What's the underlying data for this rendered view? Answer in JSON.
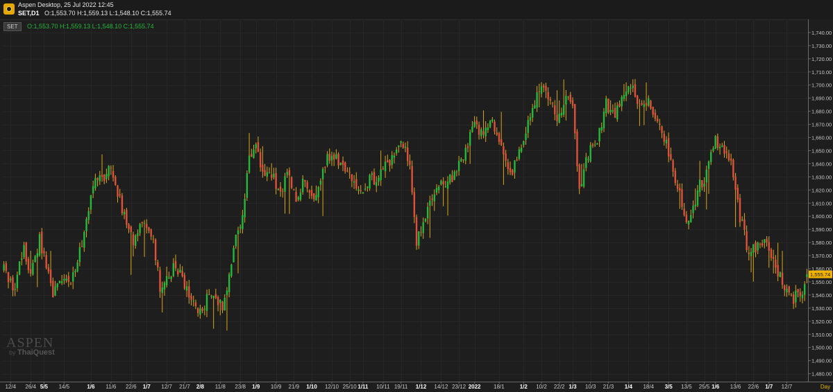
{
  "window": {
    "title": "Aspen Desktop, 25 Jul 2022 12:45",
    "symbol_tf": "SET,D1",
    "ohlc_header": "O:1,553.70 H:1,559.13 L:1,548.10 C:1,555.74"
  },
  "legend": {
    "symbol_badge": "SET",
    "ohlc": "O:1,553.70 H:1,559.13 L:1,548.10 C:1,555.74"
  },
  "watermark": {
    "brand": "ASPEN",
    "by": "by",
    "company": "ThaiQuest"
  },
  "colors": {
    "up": "#25b83a",
    "down": "#e0503a",
    "wick": "#d9a71a",
    "background": "#1e1e1e",
    "price_tag": "#f0b400"
  },
  "chart_data": {
    "type": "candlestick",
    "timeframe": "D1",
    "x_unit_label": "Day",
    "ylim": [
      1474,
      1750
    ],
    "y_ticks": [
      1480,
      1490,
      1500,
      1510,
      1520,
      1530,
      1540,
      1550,
      1560,
      1570,
      1580,
      1590,
      1600,
      1610,
      1620,
      1630,
      1640,
      1650,
      1660,
      1670,
      1680,
      1690,
      1700,
      1710,
      1720,
      1730,
      1740
    ],
    "last_price": "1,555.74",
    "x_labels": [
      {
        "label": "12/4",
        "i": 3,
        "bold": false
      },
      {
        "label": "26/4",
        "i": 12,
        "bold": false
      },
      {
        "label": "5/5",
        "i": 18,
        "bold": true
      },
      {
        "label": "14/5",
        "i": 27,
        "bold": false
      },
      {
        "label": "1/6",
        "i": 39,
        "bold": true
      },
      {
        "label": "11/6",
        "i": 48,
        "bold": false
      },
      {
        "label": "22/6",
        "i": 57,
        "bold": false
      },
      {
        "label": "1/7",
        "i": 64,
        "bold": true
      },
      {
        "label": "12/7",
        "i": 73,
        "bold": false
      },
      {
        "label": "21/7",
        "i": 81,
        "bold": false
      },
      {
        "label": "2/8",
        "i": 88,
        "bold": true
      },
      {
        "label": "11/8",
        "i": 97,
        "bold": false
      },
      {
        "label": "23/8",
        "i": 106,
        "bold": false
      },
      {
        "label": "1/9",
        "i": 113,
        "bold": true
      },
      {
        "label": "10/9",
        "i": 122,
        "bold": false
      },
      {
        "label": "21/9",
        "i": 130,
        "bold": false
      },
      {
        "label": "1/10",
        "i": 138,
        "bold": true
      },
      {
        "label": "12/10",
        "i": 147,
        "bold": false
      },
      {
        "label": "25/10",
        "i": 155,
        "bold": false
      },
      {
        "label": "1/11",
        "i": 161,
        "bold": true
      },
      {
        "label": "10/11",
        "i": 170,
        "bold": false
      },
      {
        "label": "19/11",
        "i": 178,
        "bold": false
      },
      {
        "label": "1/12",
        "i": 187,
        "bold": true
      },
      {
        "label": "14/12",
        "i": 196,
        "bold": false
      },
      {
        "label": "23/12",
        "i": 204,
        "bold": false
      },
      {
        "label": "2022",
        "i": 211,
        "bold": true
      },
      {
        "label": "18/1",
        "i": 222,
        "bold": false
      },
      {
        "label": "1/2",
        "i": 233,
        "bold": true
      },
      {
        "label": "10/2",
        "i": 241,
        "bold": false
      },
      {
        "label": "22/2",
        "i": 249,
        "bold": false
      },
      {
        "label": "1/3",
        "i": 255,
        "bold": true
      },
      {
        "label": "10/3",
        "i": 263,
        "bold": false
      },
      {
        "label": "21/3",
        "i": 271,
        "bold": false
      },
      {
        "label": "1/4",
        "i": 280,
        "bold": true
      },
      {
        "label": "18/4",
        "i": 289,
        "bold": false
      },
      {
        "label": "3/5",
        "i": 298,
        "bold": true
      },
      {
        "label": "13/5",
        "i": 306,
        "bold": false
      },
      {
        "label": "25/5",
        "i": 314,
        "bold": false
      },
      {
        "label": "1/6",
        "i": 319,
        "bold": true
      },
      {
        "label": "13/6",
        "i": 328,
        "bold": false
      },
      {
        "label": "22/6",
        "i": 336,
        "bold": false
      },
      {
        "label": "1/7",
        "i": 343,
        "bold": true
      },
      {
        "label": "12/7",
        "i": 351,
        "bold": false
      }
    ],
    "anchors": [
      [
        0,
        1560
      ],
      [
        5,
        1545
      ],
      [
        9,
        1578
      ],
      [
        12,
        1552
      ],
      [
        16,
        1582
      ],
      [
        20,
        1560
      ],
      [
        22,
        1540
      ],
      [
        27,
        1557
      ],
      [
        30,
        1548
      ],
      [
        36,
        1588
      ],
      [
        40,
        1625
      ],
      [
        44,
        1628
      ],
      [
        47,
        1638
      ],
      [
        52,
        1612
      ],
      [
        55,
        1597
      ],
      [
        58,
        1580
      ],
      [
        62,
        1597
      ],
      [
        66,
        1588
      ],
      [
        70,
        1546
      ],
      [
        74,
        1552
      ],
      [
        77,
        1564
      ],
      [
        80,
        1552
      ],
      [
        84,
        1537
      ],
      [
        88,
        1527
      ],
      [
        92,
        1540
      ],
      [
        95,
        1537
      ],
      [
        98,
        1530
      ],
      [
        101,
        1552
      ],
      [
        104,
        1582
      ],
      [
        107,
        1600
      ],
      [
        110,
        1643
      ],
      [
        113,
        1650
      ],
      [
        116,
        1636
      ],
      [
        120,
        1632
      ],
      [
        124,
        1617
      ],
      [
        127,
        1632
      ],
      [
        131,
        1614
      ],
      [
        135,
        1630
      ],
      [
        139,
        1610
      ],
      [
        143,
        1638
      ],
      [
        147,
        1647
      ],
      [
        152,
        1640
      ],
      [
        156,
        1625
      ],
      [
        160,
        1617
      ],
      [
        164,
        1627
      ],
      [
        168,
        1630
      ],
      [
        172,
        1640
      ],
      [
        176,
        1650
      ],
      [
        179,
        1655
      ],
      [
        182,
        1640
      ],
      [
        185,
        1580
      ],
      [
        189,
        1600
      ],
      [
        193,
        1618
      ],
      [
        197,
        1625
      ],
      [
        201,
        1630
      ],
      [
        205,
        1643
      ],
      [
        208,
        1655
      ],
      [
        211,
        1670
      ],
      [
        215,
        1662
      ],
      [
        219,
        1673
      ],
      [
        223,
        1650
      ],
      [
        227,
        1632
      ],
      [
        231,
        1650
      ],
      [
        235,
        1670
      ],
      [
        238,
        1685
      ],
      [
        241,
        1700
      ],
      [
        244,
        1693
      ],
      [
        248,
        1675
      ],
      [
        252,
        1692
      ],
      [
        255,
        1680
      ],
      [
        258,
        1620
      ],
      [
        262,
        1648
      ],
      [
        266,
        1660
      ],
      [
        270,
        1685
      ],
      [
        274,
        1680
      ],
      [
        279,
        1695
      ],
      [
        282,
        1698
      ],
      [
        286,
        1682
      ],
      [
        289,
        1688
      ],
      [
        293,
        1676
      ],
      [
        296,
        1660
      ],
      [
        299,
        1645
      ],
      [
        302,
        1622
      ],
      [
        305,
        1600
      ],
      [
        308,
        1598
      ],
      [
        311,
        1620
      ],
      [
        315,
        1632
      ],
      [
        319,
        1660
      ],
      [
        323,
        1648
      ],
      [
        326,
        1638
      ],
      [
        330,
        1600
      ],
      [
        334,
        1570
      ],
      [
        338,
        1578
      ],
      [
        342,
        1583
      ],
      [
        346,
        1563
      ],
      [
        350,
        1545
      ],
      [
        354,
        1538
      ],
      [
        358,
        1545
      ],
      [
        360,
        1556
      ]
    ],
    "candle_count": 361,
    "seed": 20220725
  }
}
